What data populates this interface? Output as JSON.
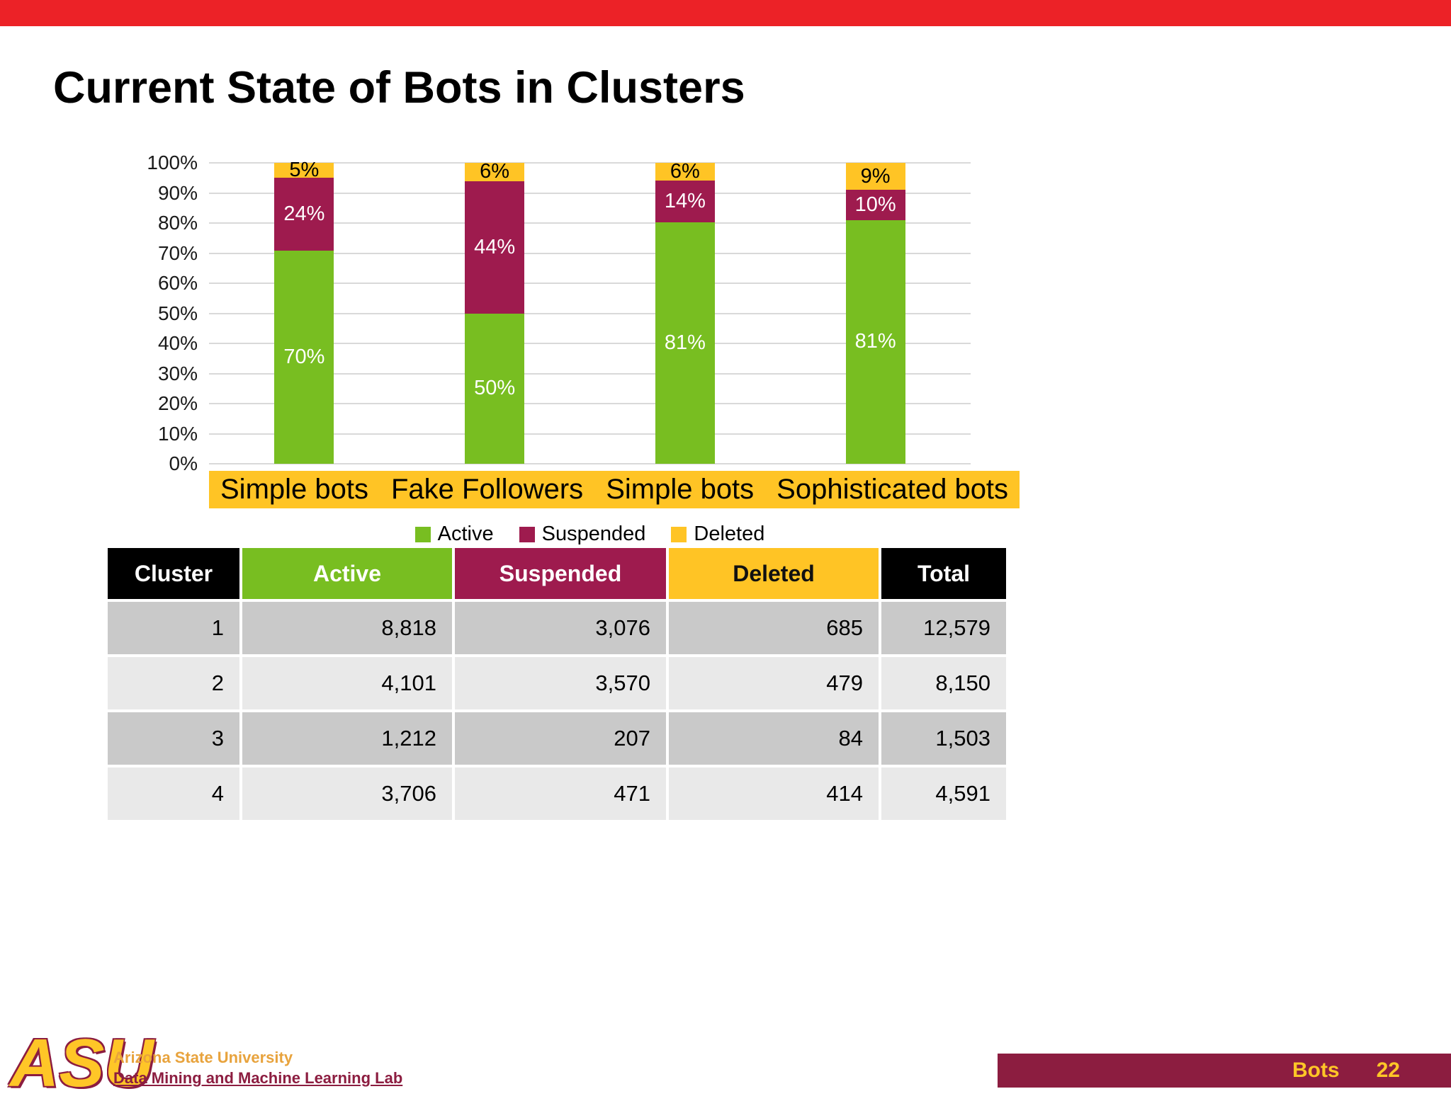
{
  "slide": {
    "title": "Current State of Bots in Clusters",
    "page_number": "22",
    "footer": {
      "logo_text": "ASU",
      "org_line1": "Arizona State University",
      "org_line2": "Data Mining and Machine Learning Lab",
      "right_label": "Bots"
    }
  },
  "colors": {
    "active": "#78BE21",
    "suspended": "#9E1B4E",
    "deleted": "#FFC425",
    "highlight": "#FFC425",
    "top_bar": "#EC2227",
    "footer_bar": "#8C1D40",
    "gold": "#FFC627",
    "gold_text": "#E8A33D",
    "row_dark": "#C9C9C9",
    "row_light": "#E9E9E9",
    "gridline": "#D9D9D9"
  },
  "chart_data": {
    "type": "bar",
    "subtype": "stacked-percent",
    "categories": [
      "Simple bots",
      "Fake Followers",
      "Simple bots",
      "Sophisticated bots"
    ],
    "series": [
      {
        "name": "Active",
        "values": [
          70,
          50,
          81,
          81
        ]
      },
      {
        "name": "Suspended",
        "values": [
          24,
          44,
          14,
          10
        ]
      },
      {
        "name": "Deleted",
        "values": [
          5,
          6,
          6,
          9
        ]
      }
    ],
    "value_label_format": "percent",
    "y_ticks": [
      "100%",
      "90%",
      "80%",
      "70%",
      "60%",
      "50%",
      "40%",
      "30%",
      "20%",
      "10%",
      "0%"
    ],
    "ylim": [
      0,
      100
    ],
    "grid": "horizontal",
    "legend_position": "bottom",
    "legend": [
      "Active",
      "Suspended",
      "Deleted"
    ]
  },
  "table": {
    "headers": [
      "Cluster",
      "Active",
      "Suspended",
      "Deleted",
      "Total"
    ],
    "rows": [
      [
        "1",
        "8,818",
        "3,076",
        "685",
        "12,579"
      ],
      [
        "2",
        "4,101",
        "3,570",
        "479",
        "8,150"
      ],
      [
        "3",
        "1,212",
        "207",
        "84",
        "1,503"
      ],
      [
        "4",
        "3,706",
        "471",
        "414",
        "4,591"
      ]
    ]
  }
}
